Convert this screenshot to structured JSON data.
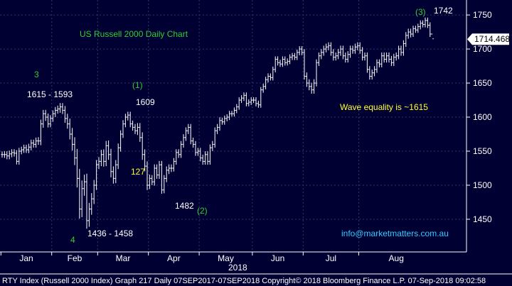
{
  "chart_data": {
    "type": "ohlc",
    "title": "US Russell 2000 Daily Chart",
    "year_label": "2018",
    "current_price_label": "1714.468",
    "current_price": 1714.468,
    "ylim": [
      1402,
      1772
    ],
    "yticks": [
      1450,
      1500,
      1550,
      1600,
      1650,
      1700,
      1750
    ],
    "ytick_labels": [
      "1450",
      "1500",
      "1550",
      "1600",
      "1650",
      "1700",
      "1750"
    ],
    "grid": true,
    "colors": {
      "background": "#000033",
      "bars": "#ffffff",
      "wave_labels": "#33cc33",
      "yellow_text": "#ffff33",
      "link_text": "#33ccff",
      "price_tag_bg": "#ffffff"
    },
    "months": [
      {
        "label": "Jan",
        "start": "2018-01-02"
      },
      {
        "label": "Feb",
        "start": "2018-02-01"
      },
      {
        "label": "Mar",
        "start": "2018-03-01"
      },
      {
        "label": "Apr",
        "start": "2018-04-02"
      },
      {
        "label": "May",
        "start": "2018-05-01"
      },
      {
        "label": "Jun",
        "start": "2018-06-01"
      },
      {
        "label": "Jul",
        "start": "2018-07-02"
      },
      {
        "label": "Aug",
        "start": "2018-08-01"
      }
    ],
    "series": [
      {
        "close": [
          1545,
          1545,
          1543,
          1546,
          1548,
          1547,
          1535,
          1550,
          1552,
          1555,
          1552,
          1556,
          1562,
          1560,
          1565,
          1565,
          1590,
          1605,
          1600,
          1590,
          1598,
          1605,
          1610,
          1612,
          1615,
          1610,
          1598,
          1590,
          1575,
          1560,
          1540,
          1510,
          1465,
          1495,
          1505,
          1448,
          1465,
          1480,
          1500,
          1530,
          1535,
          1545,
          1535,
          1558,
          1545,
          1520,
          1510,
          1530,
          1555,
          1575,
          1590,
          1600,
          1603,
          1590,
          1585,
          1580,
          1585,
          1570,
          1545,
          1528,
          1500,
          1510,
          1505,
          1525,
          1515,
          1530,
          1493,
          1510,
          1522,
          1525,
          1525,
          1535,
          1548,
          1545,
          1560,
          1570,
          1580,
          1585,
          1565,
          1560,
          1548,
          1550,
          1540,
          1535,
          1545,
          1535,
          1555,
          1560,
          1580,
          1585,
          1595,
          1593,
          1598,
          1600,
          1605,
          1605,
          1610,
          1615,
          1625,
          1628,
          1632,
          1620,
          1622,
          1625,
          1625,
          1620,
          1618,
          1640,
          1645,
          1655,
          1660,
          1658,
          1670,
          1685,
          1680,
          1678,
          1685,
          1680,
          1682,
          1688,
          1690,
          1688,
          1695,
          1700,
          1695,
          1660,
          1650,
          1645,
          1640,
          1650,
          1680,
          1690,
          1695,
          1700,
          1703,
          1705,
          1695,
          1688,
          1690,
          1695,
          1700,
          1690,
          1685,
          1692,
          1700,
          1698,
          1703,
          1705,
          1698,
          1688,
          1690,
          1670,
          1660,
          1665,
          1670,
          1680,
          1678,
          1690,
          1685,
          1690,
          1685,
          1680,
          1688,
          1690,
          1700,
          1695,
          1708,
          1720,
          1725,
          1722,
          1730,
          1728,
          1733,
          1738,
          1736,
          1742,
          1735,
          1722,
          1715
        ],
        "range": [
          13,
          14,
          14,
          14,
          14,
          14,
          13,
          14,
          13,
          13,
          13,
          14,
          14,
          14,
          14,
          16,
          18,
          16,
          16,
          15,
          14,
          14,
          14,
          14,
          16,
          16,
          18,
          20,
          22,
          26,
          30,
          38,
          40,
          34,
          30,
          34,
          26,
          24,
          22,
          20,
          18,
          20,
          22,
          20,
          22,
          24,
          22,
          20,
          18,
          16,
          16,
          14,
          14,
          14,
          14,
          14,
          18,
          18,
          22,
          22,
          20,
          16,
          14,
          16,
          16,
          16,
          16,
          14,
          16,
          16,
          16,
          14,
          14,
          14,
          14,
          14,
          14,
          14,
          14,
          14,
          14,
          14,
          14,
          14,
          14,
          14,
          14,
          14,
          14,
          14,
          14,
          12,
          12,
          12,
          12,
          12,
          12,
          12,
          12,
          12,
          12,
          12,
          12,
          12,
          12,
          12,
          12,
          12,
          12,
          12,
          12,
          12,
          12,
          12,
          12,
          12,
          12,
          12,
          12,
          12,
          12,
          12,
          12,
          12,
          12,
          14,
          16,
          16,
          16,
          16,
          14,
          14,
          14,
          14,
          14,
          14,
          14,
          14,
          14,
          14,
          14,
          14,
          14,
          14,
          14,
          14,
          14,
          14,
          14,
          14,
          14,
          14,
          14,
          14,
          14,
          14,
          14,
          14,
          14,
          14,
          14,
          14,
          14,
          14,
          14,
          14,
          14,
          14,
          14,
          14,
          12,
          12,
          12,
          12,
          12,
          12,
          12,
          12
        ]
      }
    ],
    "annotations": {
      "wave_3": "3",
      "wave_4": "4",
      "wave_1": "(1)",
      "wave_2": "(2)",
      "wave_3b": "(3)",
      "level_1615_1593": "1615 - 1593",
      "level_1436_1458": "1436 - 1458",
      "level_1609": "1609",
      "level_127": "127",
      "level_1482": "1482",
      "level_1742": "1742",
      "wave_equality": "Wave equality is ~1615",
      "contact": "info@marketmatters.com.au"
    },
    "footer": {
      "text": "RTY Index (Russell 2000 Index) Graph 217  Daily 07SEP2017-07SEP2018  Copyright© 2018 Bloomberg Finance L.P.   07-Sep-2018 09:02:58"
    }
  }
}
